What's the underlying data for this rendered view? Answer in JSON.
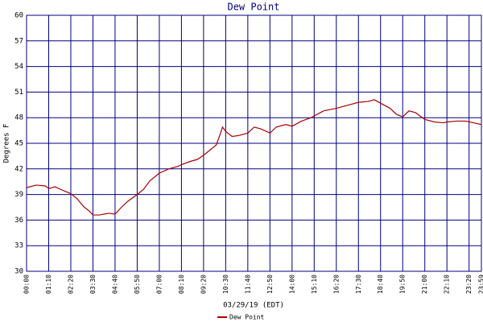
{
  "chart_data": {
    "type": "line",
    "title": "Dew Point",
    "xlabel": "03/29/19 (EDT)",
    "ylabel": "Degrees F",
    "x": [
      0,
      30,
      60,
      70,
      90,
      120,
      140,
      160,
      180,
      200,
      210,
      230,
      260,
      280,
      290,
      300,
      320,
      350,
      370,
      390,
      420,
      450,
      480,
      490,
      520,
      540,
      560,
      580,
      600,
      610,
      620,
      630,
      650,
      670,
      700,
      720,
      740,
      770,
      790,
      820,
      840,
      870,
      900,
      910,
      940,
      980,
      1020,
      1050,
      1080,
      1100,
      1120,
      1150,
      1170,
      1190,
      1210,
      1230,
      1260,
      1290,
      1320,
      1330,
      1360,
      1390,
      1439
    ],
    "series": [
      {
        "name": "Dew Point",
        "color": "#aa0000",
        "values": [
          39.8,
          40.1,
          40.0,
          39.7,
          39.9,
          39.4,
          39.1,
          38.5,
          37.6,
          37.0,
          36.6,
          36.6,
          36.8,
          36.7,
          37.1,
          37.5,
          38.2,
          39.0,
          39.6,
          40.6,
          41.5,
          42.0,
          42.3,
          42.5,
          42.9,
          43.1,
          43.6,
          44.2,
          44.8,
          45.8,
          46.9,
          46.4,
          45.8,
          45.9,
          46.2,
          46.9,
          46.7,
          46.2,
          46.9,
          47.2,
          47.0,
          47.6,
          48.0,
          48.2,
          48.8,
          49.1,
          49.5,
          49.8,
          49.9,
          50.1,
          49.7,
          49.1,
          48.4,
          48.1,
          48.8,
          48.6,
          47.8,
          47.5,
          47.4,
          47.5,
          47.6,
          47.6,
          47.2
        ]
      }
    ],
    "xlim": [
      0,
      1439
    ],
    "xticks": [
      {
        "value": 0,
        "label": "00:00"
      },
      {
        "value": 70,
        "label": "01:10"
      },
      {
        "value": 140,
        "label": "02:20"
      },
      {
        "value": 210,
        "label": "03:30"
      },
      {
        "value": 280,
        "label": "04:40"
      },
      {
        "value": 350,
        "label": "05:50"
      },
      {
        "value": 420,
        "label": "07:00"
      },
      {
        "value": 490,
        "label": "08:10"
      },
      {
        "value": 560,
        "label": "09:20"
      },
      {
        "value": 630,
        "label": "10:30"
      },
      {
        "value": 700,
        "label": "11:40"
      },
      {
        "value": 770,
        "label": "12:50"
      },
      {
        "value": 840,
        "label": "14:00"
      },
      {
        "value": 910,
        "label": "15:10"
      },
      {
        "value": 980,
        "label": "16:20"
      },
      {
        "value": 1050,
        "label": "17:30"
      },
      {
        "value": 1120,
        "label": "18:40"
      },
      {
        "value": 1190,
        "label": "19:50"
      },
      {
        "value": 1260,
        "label": "21:00"
      },
      {
        "value": 1330,
        "label": "22:10"
      },
      {
        "value": 1400,
        "label": "23:20"
      },
      {
        "value": 1439,
        "label": "23:59"
      }
    ],
    "ylim": [
      30,
      60
    ],
    "yticks": [
      30,
      33,
      36,
      39,
      42,
      45,
      48,
      51,
      54,
      57,
      60
    ],
    "grid": true,
    "grid_color": "#000080",
    "legend": "bottom"
  }
}
